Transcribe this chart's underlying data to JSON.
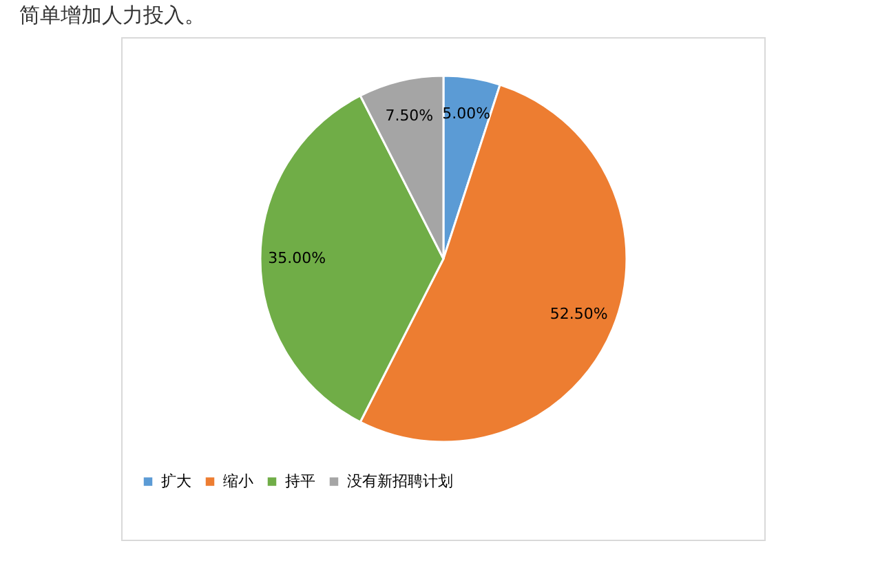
{
  "chart_data": {
    "type": "pie",
    "categories": [
      "扩大",
      "缩小",
      "持平",
      "没有新招聘计划"
    ],
    "values": [
      5,
      52.5,
      35,
      7.5
    ],
    "colors": [
      "#5b9bd5",
      "#ed7d31",
      "#70ad47",
      "#a5a5a5"
    ],
    "value_labels": [
      "5.00%",
      "52.50%",
      "35.00%",
      "7.50%"
    ],
    "legend": "bottom",
    "annotations": [
      "简单增加人力投入。"
    ]
  }
}
